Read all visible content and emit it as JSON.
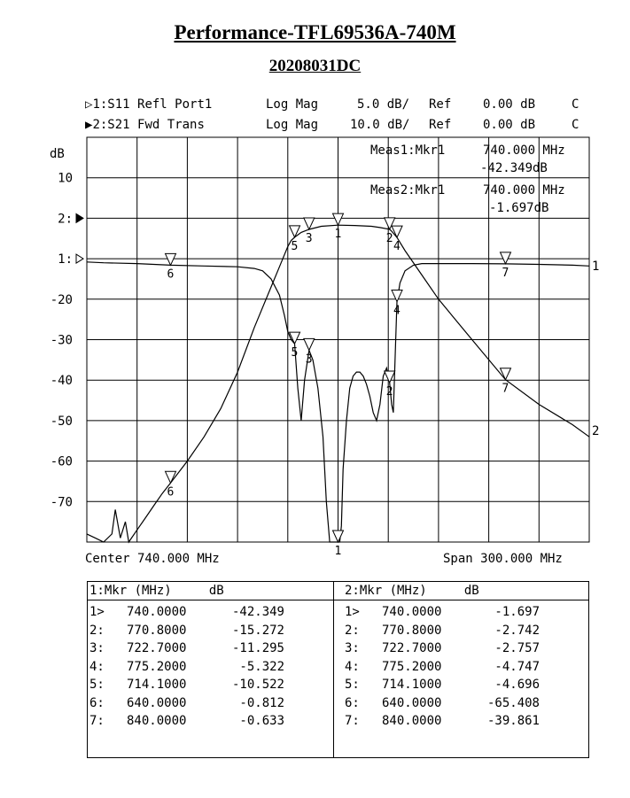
{
  "title": "Performance-TFL69536A-740M",
  "subtitle": "20208031DC",
  "traces": [
    {
      "id": "1",
      "marker": "▷",
      "label": "1:S11 Refl Port1",
      "format": "Log Mag",
      "scale": "5.0 dB/",
      "ref_label": "Ref",
      "ref": "0.00 dB",
      "coupling": "C"
    },
    {
      "id": "2",
      "marker": "▶",
      "label": "2:S21 Fwd Trans",
      "format": "Log Mag",
      "scale": "10.0 dB/",
      "ref_label": "Ref",
      "ref": "0.00 dB",
      "coupling": "C"
    }
  ],
  "readouts": [
    {
      "label": "Meas1:Mkr1",
      "freq": "740.000 MHz",
      "value": "-42.349dB"
    },
    {
      "label": "Meas2:Mkr1",
      "freq": "740.000 MHz",
      "value": "-1.697dB"
    }
  ],
  "footer": {
    "center": "Center 740.000 MHz",
    "span": "Span 300.000 MHz"
  },
  "axis": {
    "unit": "dB",
    "ticks": [
      {
        "label": "10",
        "v": 10
      },
      {
        "label": "2:",
        "v": 0,
        "arrow": "filled"
      },
      {
        "label": "1:",
        "v": -10,
        "arrow": "open"
      },
      {
        "label": "-20",
        "v": -20
      },
      {
        "label": "-30",
        "v": -30
      },
      {
        "label": "-40",
        "v": -40
      },
      {
        "label": "-50",
        "v": -50
      },
      {
        "label": "-60",
        "v": -60
      },
      {
        "label": "-70",
        "v": -70
      }
    ],
    "end_labels": [
      "1",
      "2"
    ]
  },
  "chart_data": {
    "type": "line",
    "xlim": [
      590,
      890
    ],
    "ylim_screen": [
      -80,
      20
    ],
    "grid": true,
    "series": [
      {
        "name": "S11",
        "scale_db_per_div": 5,
        "ref_screen": -10,
        "x": [
          590,
          600,
          620,
          640,
          660,
          680,
          690,
          695,
          700,
          705,
          708,
          710,
          712,
          714.1,
          716,
          718,
          720,
          722.7,
          725,
          728,
          731,
          733,
          735,
          737,
          738,
          739,
          740,
          741,
          742,
          743,
          745,
          747,
          749,
          751,
          753,
          755,
          757,
          759,
          761,
          763,
          765,
          767,
          769,
          770.8,
          772,
          773,
          775.2,
          777,
          780,
          785,
          790,
          800,
          820,
          840,
          860,
          880,
          890
        ],
        "y": [
          -0.4,
          -0.5,
          -0.6,
          -0.8,
          -0.9,
          -1.0,
          -1.2,
          -1.5,
          -2.5,
          -4.5,
          -7,
          -9,
          -10,
          -10.5,
          -16,
          -20,
          -15,
          -11.3,
          -12.5,
          -16,
          -22,
          -30,
          -40,
          -44,
          -44.5,
          -43,
          -42.3,
          -40,
          -33,
          -26,
          -20,
          -16,
          -14.5,
          -14,
          -14,
          -14.5,
          -15.5,
          -17,
          -19,
          -20,
          -18,
          -14.5,
          -13.5,
          -15.3,
          -18,
          -19,
          -5.3,
          -3,
          -1.5,
          -0.8,
          -0.6,
          -0.6,
          -0.6,
          -0.63,
          -0.7,
          -0.8,
          -0.9
        ]
      },
      {
        "name": "S21",
        "scale_db_per_div": 10,
        "ref_screen": 0,
        "x": [
          590,
          595,
          600,
          605,
          607,
          610,
          613,
          615,
          620,
          625,
          630,
          635,
          640,
          650,
          660,
          670,
          680,
          690,
          700,
          705,
          710,
          712,
          714.1,
          718,
          722.7,
          730,
          740,
          750,
          760,
          765,
          770.8,
          772,
          775.2,
          780,
          790,
          800,
          820,
          840,
          860,
          880,
          890
        ],
        "y": [
          -78,
          -79,
          -80,
          -78,
          -72,
          -79,
          -75,
          -80,
          -77,
          -74,
          -71,
          -68,
          -65.4,
          -60,
          -54,
          -47,
          -38,
          -27,
          -17,
          -12,
          -7,
          -5.5,
          -4.7,
          -3.5,
          -2.76,
          -2,
          -1.7,
          -1.8,
          -2,
          -2.3,
          -2.74,
          -3.2,
          -4.75,
          -8,
          -14,
          -20,
          -30,
          -39.9,
          -46,
          -51,
          -54
        ]
      }
    ],
    "markers": {
      "S11": [
        {
          "n": "1",
          "x": 740
        },
        {
          "n": "2",
          "x": 770.8
        },
        {
          "n": "3",
          "x": 722.7
        },
        {
          "n": "4",
          "x": 775.2
        },
        {
          "n": "5",
          "x": 714.1
        },
        {
          "n": "6",
          "x": 640
        },
        {
          "n": "7",
          "x": 840
        }
      ],
      "S21": [
        {
          "n": "1",
          "x": 740
        },
        {
          "n": "2",
          "x": 770.8
        },
        {
          "n": "3",
          "x": 722.7
        },
        {
          "n": "4",
          "x": 775.2
        },
        {
          "n": "5",
          "x": 714.1
        },
        {
          "n": "6",
          "x": 640
        },
        {
          "n": "7",
          "x": 840
        }
      ]
    }
  },
  "table": {
    "left_header": "1:Mkr (MHz)     dB",
    "right_header": "2:Mkr (MHz)     dB",
    "left_rows": [
      [
        "1>",
        "740.0000",
        "-42.349"
      ],
      [
        "2:",
        "770.8000",
        "-15.272"
      ],
      [
        "3:",
        "722.7000",
        "-11.295"
      ],
      [
        "4:",
        "775.2000",
        "-5.322"
      ],
      [
        "5:",
        "714.1000",
        "-10.522"
      ],
      [
        "6:",
        "640.0000",
        "-0.812"
      ],
      [
        "7:",
        "840.0000",
        "-0.633"
      ]
    ],
    "right_rows": [
      [
        "1>",
        "740.0000",
        "-1.697"
      ],
      [
        "2:",
        "770.8000",
        "-2.742"
      ],
      [
        "3:",
        "722.7000",
        "-2.757"
      ],
      [
        "4:",
        "775.2000",
        "-4.747"
      ],
      [
        "5:",
        "714.1000",
        "-4.696"
      ],
      [
        "6:",
        "640.0000",
        "-65.408"
      ],
      [
        "7:",
        "840.0000",
        "-39.861"
      ]
    ]
  }
}
